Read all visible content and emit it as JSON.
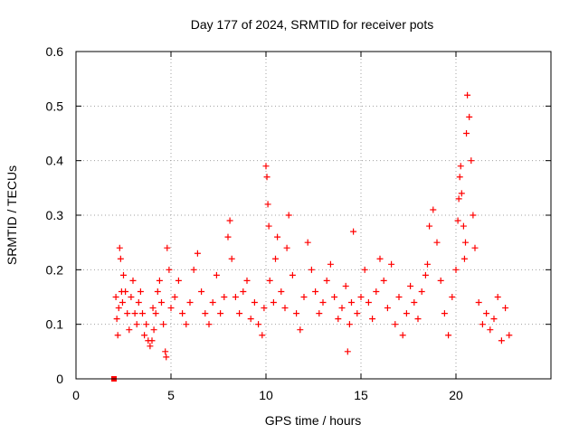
{
  "chart_data": {
    "type": "scatter",
    "title": "Day 177 of 2024, SRMTID for receiver pots",
    "xlabel": "GPS time / hours",
    "ylabel": "SRMTID / TECUs",
    "xlim": [
      0,
      25
    ],
    "ylim": [
      0,
      0.6
    ],
    "x_ticks": [
      0,
      5,
      10,
      15,
      20
    ],
    "x_tick_labels": [
      "0",
      "5",
      "10",
      "15",
      "20"
    ],
    "y_ticks": [
      0,
      0.1,
      0.2,
      0.3,
      0.4,
      0.5,
      0.6
    ],
    "y_tick_labels": [
      "0",
      "0.1",
      "0.2",
      "0.3",
      "0.4",
      "0.5",
      "0.6"
    ],
    "grid": true,
    "marker": "plus",
    "colors": {
      "points": "#ff0000",
      "grid": "#a0a0a0",
      "axes": "#000000"
    },
    "series": [
      {
        "name": "SRMTID",
        "x": [
          2.0,
          2.1,
          2.15,
          2.2,
          2.25,
          2.3,
          2.35,
          2.4,
          2.45,
          2.5,
          2.6,
          2.7,
          2.8,
          2.9,
          3.0,
          3.1,
          3.2,
          3.3,
          3.4,
          3.5,
          3.6,
          3.7,
          3.8,
          3.9,
          4.0,
          4.05,
          4.1,
          4.2,
          4.3,
          4.4,
          4.5,
          4.6,
          4.7,
          4.75,
          4.8,
          4.9,
          5.0,
          5.2,
          5.4,
          5.6,
          5.8,
          6.0,
          6.2,
          6.4,
          6.6,
          6.8,
          7.0,
          7.2,
          7.4,
          7.6,
          7.8,
          8.0,
          8.1,
          8.2,
          8.4,
          8.6,
          8.8,
          9.0,
          9.2,
          9.4,
          9.6,
          9.8,
          9.9,
          10.0,
          10.05,
          10.1,
          10.15,
          10.2,
          10.4,
          10.5,
          10.6,
          10.8,
          11.0,
          11.1,
          11.2,
          11.4,
          11.6,
          11.8,
          12.0,
          12.2,
          12.4,
          12.6,
          12.8,
          13.0,
          13.2,
          13.4,
          13.6,
          13.8,
          14.0,
          14.2,
          14.3,
          14.4,
          14.5,
          14.6,
          14.8,
          15.0,
          15.2,
          15.4,
          15.6,
          15.8,
          16.0,
          16.2,
          16.4,
          16.6,
          16.8,
          17.0,
          17.2,
          17.4,
          17.6,
          17.8,
          18.0,
          18.2,
          18.4,
          18.5,
          18.6,
          18.8,
          19.0,
          19.2,
          19.4,
          19.6,
          19.8,
          20.0,
          20.1,
          20.15,
          20.2,
          20.25,
          20.3,
          20.4,
          20.45,
          20.5,
          20.55,
          20.6,
          20.7,
          20.8,
          20.9,
          21.0,
          21.2,
          21.4,
          21.6,
          21.8,
          22.0,
          22.2,
          22.4,
          22.6,
          22.8
        ],
        "y": [
          0.0,
          0.15,
          0.11,
          0.08,
          0.13,
          0.24,
          0.22,
          0.16,
          0.14,
          0.19,
          0.16,
          0.12,
          0.09,
          0.15,
          0.18,
          0.12,
          0.1,
          0.14,
          0.16,
          0.12,
          0.08,
          0.1,
          0.07,
          0.06,
          0.07,
          0.13,
          0.09,
          0.12,
          0.16,
          0.18,
          0.14,
          0.1,
          0.05,
          0.04,
          0.24,
          0.2,
          0.13,
          0.15,
          0.18,
          0.12,
          0.1,
          0.14,
          0.2,
          0.23,
          0.16,
          0.12,
          0.1,
          0.14,
          0.19,
          0.12,
          0.15,
          0.26,
          0.29,
          0.22,
          0.15,
          0.12,
          0.16,
          0.18,
          0.11,
          0.14,
          0.1,
          0.08,
          0.13,
          0.39,
          0.37,
          0.32,
          0.28,
          0.18,
          0.14,
          0.22,
          0.26,
          0.16,
          0.13,
          0.24,
          0.3,
          0.19,
          0.12,
          0.09,
          0.15,
          0.25,
          0.2,
          0.16,
          0.12,
          0.14,
          0.18,
          0.21,
          0.15,
          0.11,
          0.13,
          0.17,
          0.05,
          0.1,
          0.14,
          0.27,
          0.12,
          0.15,
          0.2,
          0.14,
          0.11,
          0.16,
          0.22,
          0.18,
          0.13,
          0.21,
          0.1,
          0.15,
          0.08,
          0.12,
          0.17,
          0.14,
          0.11,
          0.16,
          0.19,
          0.21,
          0.28,
          0.31,
          0.25,
          0.18,
          0.12,
          0.08,
          0.15,
          0.2,
          0.29,
          0.33,
          0.37,
          0.39,
          0.34,
          0.28,
          0.22,
          0.25,
          0.45,
          0.52,
          0.48,
          0.4,
          0.3,
          0.24,
          0.14,
          0.1,
          0.12,
          0.09,
          0.11,
          0.15,
          0.07,
          0.13,
          0.08
        ]
      }
    ]
  }
}
